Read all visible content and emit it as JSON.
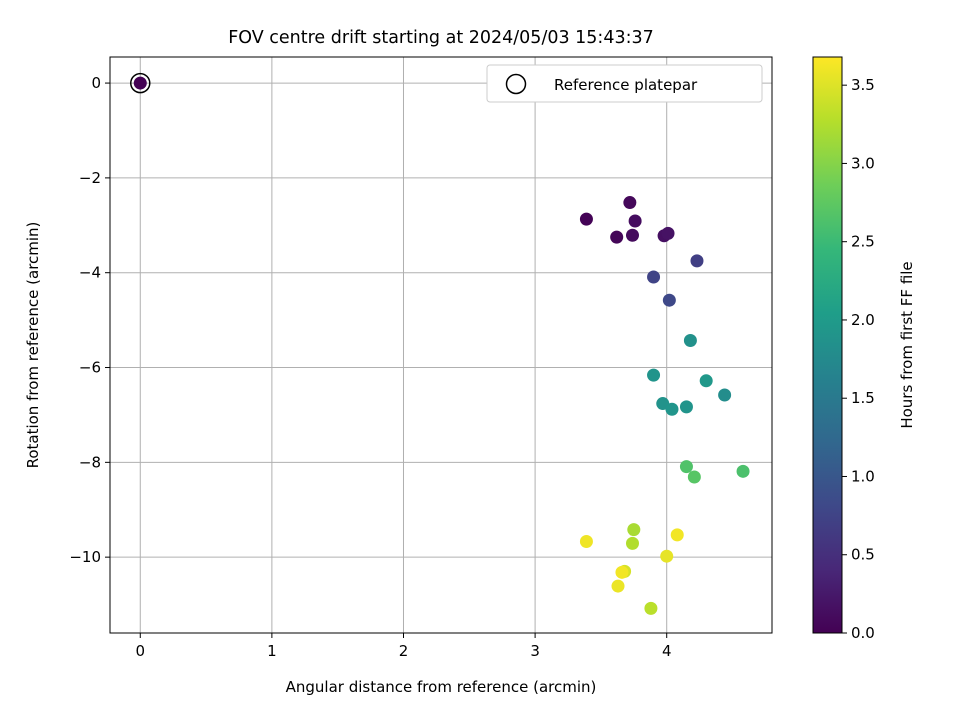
{
  "chart_data": {
    "type": "scatter",
    "title": "FOV centre drift starting at 2024/05/03 15:43:37",
    "xlabel": "Angular distance from reference (arcmin)",
    "ylabel": "Rotation from reference (arcmin)",
    "xlim": [
      -0.23,
      4.8
    ],
    "ylim": [
      -11.6,
      0.55
    ],
    "xticks": [
      0,
      1,
      2,
      3,
      4
    ],
    "xtick_labels": [
      "0",
      "1",
      "2",
      "3",
      "4"
    ],
    "yticks": [
      0,
      -2,
      -4,
      -6,
      -8,
      -10
    ],
    "ytick_labels": [
      "0",
      "−2",
      "−4",
      "−6",
      "−8",
      "−10"
    ],
    "grid": true,
    "legend": {
      "position": "top-right",
      "entries": [
        "Reference platepar"
      ]
    },
    "colorbar": {
      "label": "Hours from first FF file",
      "range": [
        0.0,
        3.68
      ],
      "ticks": [
        0.0,
        0.5,
        1.0,
        1.5,
        2.0,
        2.5,
        3.0,
        3.5
      ],
      "tick_labels": [
        "0.0",
        "0.5",
        "1.0",
        "1.5",
        "2.0",
        "2.5",
        "3.0",
        "3.5"
      ],
      "colormap": [
        "#440154",
        "#482878",
        "#3e4989",
        "#31688e",
        "#26828e",
        "#1f9e89",
        "#35b779",
        "#6ece58",
        "#b5de2b",
        "#fde725"
      ]
    },
    "reference_point": {
      "x": 0,
      "y": 0,
      "marker": "open-circle"
    },
    "series": [
      {
        "points": [
          {
            "x": 0.0,
            "y": 0.0,
            "hours": 0.0
          },
          {
            "x": 3.39,
            "y": -2.87,
            "hours": 0.02
          },
          {
            "x": 3.62,
            "y": -3.25,
            "hours": 0.05
          },
          {
            "x": 3.72,
            "y": -2.52,
            "hours": 0.07
          },
          {
            "x": 3.74,
            "y": -3.21,
            "hours": 0.1
          },
          {
            "x": 3.76,
            "y": -2.91,
            "hours": 0.12
          },
          {
            "x": 3.98,
            "y": -3.22,
            "hours": 0.15
          },
          {
            "x": 4.01,
            "y": -3.17,
            "hours": 0.18
          },
          {
            "x": 4.23,
            "y": -3.75,
            "hours": 0.7
          },
          {
            "x": 3.9,
            "y": -4.09,
            "hours": 0.75
          },
          {
            "x": 4.02,
            "y": -4.58,
            "hours": 0.8
          },
          {
            "x": 4.18,
            "y": -5.43,
            "hours": 1.85
          },
          {
            "x": 3.9,
            "y": -6.16,
            "hours": 1.9
          },
          {
            "x": 4.3,
            "y": -6.28,
            "hours": 1.95
          },
          {
            "x": 4.44,
            "y": -6.58,
            "hours": 1.8
          },
          {
            "x": 3.97,
            "y": -6.76,
            "hours": 1.88
          },
          {
            "x": 4.04,
            "y": -6.88,
            "hours": 1.92
          },
          {
            "x": 4.15,
            "y": -6.83,
            "hours": 1.9
          },
          {
            "x": 4.15,
            "y": -8.09,
            "hours": 2.65
          },
          {
            "x": 4.21,
            "y": -8.31,
            "hours": 2.7
          },
          {
            "x": 4.58,
            "y": -8.19,
            "hours": 2.62
          },
          {
            "x": 3.75,
            "y": -9.42,
            "hours": 3.2
          },
          {
            "x": 4.08,
            "y": -9.53,
            "hours": 3.62
          },
          {
            "x": 3.39,
            "y": -9.67,
            "hours": 3.6
          },
          {
            "x": 3.74,
            "y": -9.71,
            "hours": 3.25
          },
          {
            "x": 4.0,
            "y": -9.98,
            "hours": 3.55
          },
          {
            "x": 3.68,
            "y": -10.3,
            "hours": 3.45
          },
          {
            "x": 3.66,
            "y": -10.32,
            "hours": 3.62
          },
          {
            "x": 3.63,
            "y": -10.61,
            "hours": 3.58
          },
          {
            "x": 3.88,
            "y": -11.08,
            "hours": 3.3
          }
        ]
      }
    ]
  }
}
